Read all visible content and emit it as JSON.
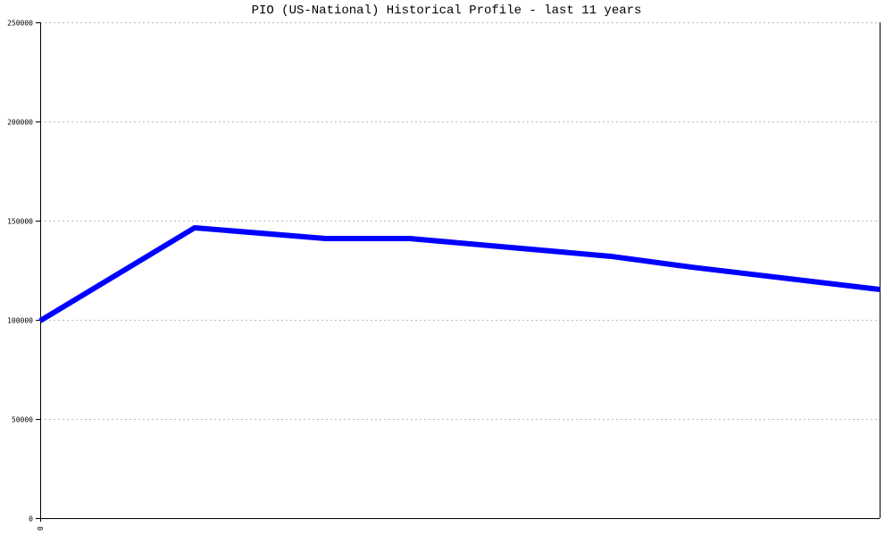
{
  "chart_data": {
    "type": "line",
    "title": "PIO (US-National) Historical Profile - last 11 years",
    "xlabel": "",
    "ylabel": "",
    "x_tick_labels": [
      "0"
    ],
    "y_tick_labels": [
      "0",
      "50000",
      "100000",
      "150000",
      "200000",
      "250000"
    ],
    "ylim": [
      0,
      250000
    ],
    "xlim": [
      0,
      10
    ],
    "grid": "horizontal dashed",
    "line_color": "#0000ff",
    "series": [
      {
        "x": [
          0,
          1.84,
          3.4,
          4.4,
          6.8,
          7.75,
          10
        ],
        "values": [
          99500,
          146400,
          141000,
          141000,
          132000,
          126600,
          115300
        ]
      }
    ]
  }
}
